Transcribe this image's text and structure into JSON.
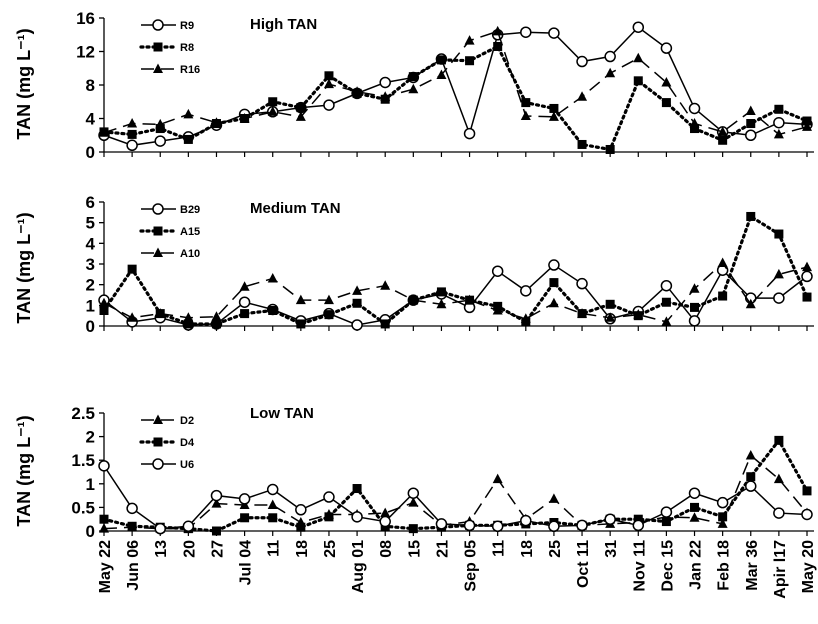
{
  "chart_data": [
    {
      "type": "line",
      "title": "High TAN",
      "ylabel": "TAN (mg L⁻¹)",
      "ylim": [
        0,
        16
      ],
      "yticks": [
        "0",
        "4",
        "8",
        "12",
        "16"
      ],
      "series": [
        {
          "name": "R9",
          "marker": "circle-open",
          "line": "solid",
          "values": [
            2.0,
            0.8,
            1.3,
            1.8,
            3.2,
            4.5,
            4.8,
            5.3,
            5.6,
            7.0,
            8.3,
            8.9,
            11.1,
            2.2,
            14.0,
            14.3,
            14.2,
            10.8,
            11.4,
            14.9,
            12.4,
            5.2,
            2.4,
            2.0,
            3.5,
            3.3
          ]
        },
        {
          "name": "R8",
          "marker": "square-filled",
          "line": "dotted",
          "values": [
            2.4,
            2.1,
            2.8,
            1.5,
            3.4,
            4.0,
            6.0,
            5.3,
            9.1,
            7.0,
            6.3,
            9.0,
            11.0,
            10.9,
            12.6,
            5.9,
            5.2,
            0.9,
            0.3,
            8.5,
            5.9,
            2.8,
            1.4,
            3.4,
            5.1,
            3.7
          ]
        },
        {
          "name": "R16",
          "marker": "triangle-filled",
          "line": "dashed",
          "values": [
            2.3,
            3.4,
            3.3,
            4.5,
            3.5,
            4.0,
            4.8,
            4.2,
            8.1,
            7.2,
            6.6,
            7.5,
            9.2,
            13.3,
            14.4,
            4.3,
            4.2,
            6.6,
            9.4,
            11.2,
            8.3,
            3.4,
            2.4,
            4.9,
            2.1,
            3.0
          ]
        }
      ]
    },
    {
      "type": "line",
      "title": "Medium TAN",
      "ylabel": "TAN (mg L⁻¹)",
      "ylim": [
        0,
        6
      ],
      "yticks": [
        "0",
        "1",
        "2",
        "3",
        "4",
        "5",
        "6"
      ],
      "series": [
        {
          "name": "B29",
          "marker": "circle-open",
          "line": "solid",
          "values": [
            1.25,
            0.2,
            0.4,
            0.05,
            0.1,
            1.15,
            0.8,
            0.25,
            0.6,
            0.05,
            0.3,
            1.25,
            1.55,
            0.9,
            2.65,
            1.7,
            2.95,
            2.05,
            0.35,
            0.7,
            1.95,
            0.25,
            2.7,
            1.35,
            1.35,
            2.4
          ]
        },
        {
          "name": "A15",
          "marker": "square-filled",
          "line": "dotted",
          "values": [
            0.75,
            2.75,
            0.6,
            0.1,
            0.1,
            0.6,
            0.75,
            0.1,
            0.55,
            1.1,
            0.1,
            1.25,
            1.65,
            1.25,
            0.95,
            0.2,
            2.1,
            0.6,
            1.05,
            0.5,
            1.15,
            0.9,
            1.45,
            5.3,
            4.45,
            1.4
          ]
        },
        {
          "name": "A10",
          "marker": "triangle-filled",
          "line": "dashed",
          "values": [
            1.1,
            0.4,
            0.6,
            0.4,
            0.45,
            1.9,
            2.3,
            1.25,
            1.25,
            1.7,
            1.95,
            1.25,
            1.05,
            1.25,
            0.75,
            0.35,
            1.1,
            0.6,
            0.4,
            0.55,
            0.2,
            1.8,
            3.05,
            1.05,
            2.5,
            2.85
          ]
        }
      ]
    },
    {
      "type": "line",
      "title": "Low TAN",
      "ylabel": "TAN (mg L⁻¹)",
      "ylim": [
        0,
        2.5
      ],
      "yticks": [
        "0",
        "0.5",
        "1",
        "1.5",
        "2",
        "2.5"
      ],
      "series": [
        {
          "name": "D2",
          "marker": "triangle-filled",
          "line": "dashed",
          "values": [
            0.05,
            0.08,
            0.05,
            0.05,
            0.58,
            0.55,
            0.55,
            0.18,
            0.35,
            0.35,
            0.38,
            0.6,
            0.12,
            0.2,
            1.1,
            0.25,
            0.68,
            0.12,
            0.15,
            0.18,
            0.3,
            0.28,
            0.15,
            1.6,
            1.1,
            0.38
          ]
        },
        {
          "name": "D4",
          "marker": "square-filled",
          "line": "dotted",
          "values": [
            0.25,
            0.1,
            0.08,
            0.05,
            0.0,
            0.28,
            0.28,
            0.08,
            0.3,
            0.9,
            0.1,
            0.05,
            0.08,
            0.12,
            0.12,
            0.15,
            0.18,
            0.12,
            0.25,
            0.25,
            0.2,
            0.5,
            0.3,
            1.15,
            1.92,
            0.85
          ]
        },
        {
          "name": "U6",
          "marker": "circle-open",
          "line": "solid",
          "values": [
            1.38,
            0.48,
            0.05,
            0.1,
            0.75,
            0.68,
            0.88,
            0.45,
            0.72,
            0.3,
            0.2,
            0.8,
            0.15,
            0.12,
            0.1,
            0.22,
            0.1,
            0.12,
            0.25,
            0.12,
            0.4,
            0.8,
            0.6,
            0.95,
            0.38,
            0.35
          ]
        }
      ]
    }
  ],
  "x_categories": [
    "May 22",
    "Jun 06",
    "13",
    "20",
    "27",
    "Jul 04",
    "11",
    "18",
    "25",
    "Aug 01",
    "08",
    "15",
    "21",
    "Sep 05",
    "11",
    "18",
    "25",
    "Oct 11",
    "31",
    "Nov 11",
    "Dec 15",
    "Jan 22",
    "Feb 18",
    "Mar 36",
    "Apir l17",
    "May 20"
  ]
}
